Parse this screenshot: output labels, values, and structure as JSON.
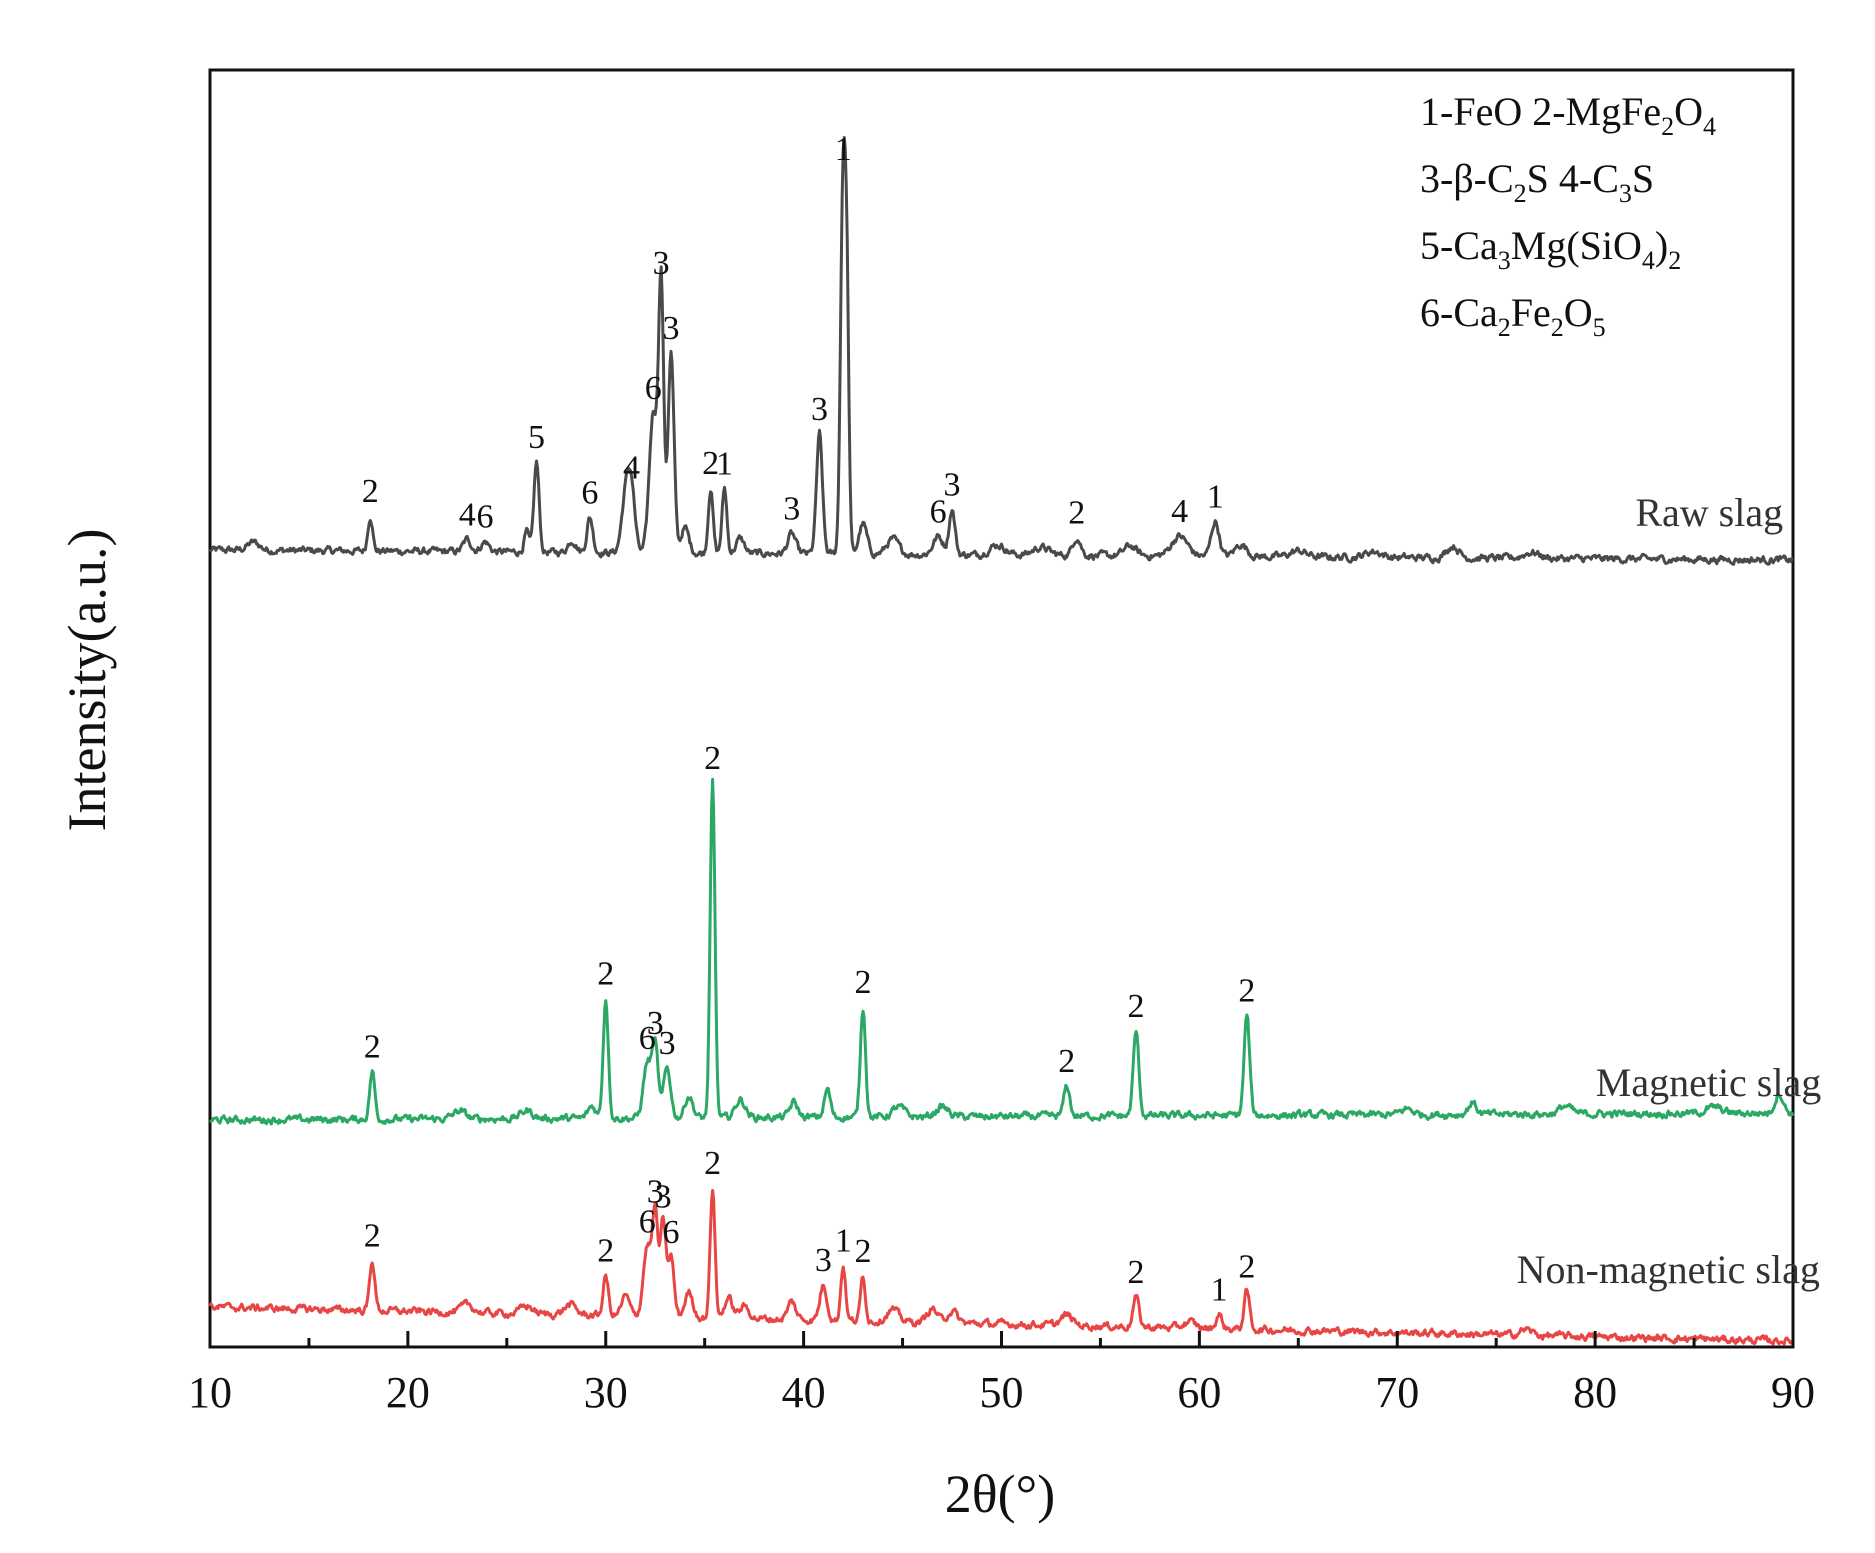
{
  "chart_data": {
    "type": "line",
    "xlabel": "2θ(°)",
    "ylabel": "Intensity(a.u.)",
    "xlim": [
      10,
      90
    ],
    "xticks": [
      10,
      20,
      30,
      40,
      50,
      60,
      70,
      80,
      90
    ],
    "y_units": "arbitrary, stacked",
    "grid": false,
    "legend_placement": "top-right",
    "legend": [
      {
        "id": "l1",
        "parts": [
          {
            "t": "1-FeO  2-MgFe"
          },
          {
            "t": "2",
            "sub": true
          },
          {
            "t": "O"
          },
          {
            "t": "4",
            "sub": true
          }
        ]
      },
      {
        "id": "l2",
        "parts": [
          {
            "t": "3-β-C"
          },
          {
            "t": "2",
            "sub": true
          },
          {
            "t": "S 4-C"
          },
          {
            "t": "3",
            "sub": true
          },
          {
            "t": "S"
          }
        ]
      },
      {
        "id": "l3",
        "parts": [
          {
            "t": "5-Ca"
          },
          {
            "t": "3",
            "sub": true
          },
          {
            "t": "Mg(SiO"
          },
          {
            "t": "4",
            "sub": true
          },
          {
            "t": ")"
          },
          {
            "t": "2",
            "sub": true
          }
        ]
      },
      {
        "id": "l4",
        "parts": [
          {
            "t": "6-Ca"
          },
          {
            "t": "2",
            "sub": true
          },
          {
            "t": "Fe"
          },
          {
            "t": "2",
            "sub": true
          },
          {
            "t": "O"
          },
          {
            "t": "5",
            "sub": true
          }
        ]
      }
    ],
    "series": [
      {
        "name": "Raw slag",
        "color": "#4a4a4a",
        "baseline": 60,
        "baseline_end": 50,
        "label_x": 79,
        "peaks": [
          {
            "x": 12.2,
            "h": 8,
            "w": 0.3
          },
          {
            "x": 18.1,
            "h": 35,
            "w": 0.12,
            "label": "2"
          },
          {
            "x": 23.0,
            "h": 12,
            "w": 0.2,
            "label": "4"
          },
          {
            "x": 23.9,
            "h": 10,
            "w": 0.2,
            "label": "6"
          },
          {
            "x": 26.0,
            "h": 20,
            "w": 0.12
          },
          {
            "x": 26.5,
            "h": 90,
            "w": 0.13,
            "label": "5"
          },
          {
            "x": 28.3,
            "h": 12,
            "w": 0.2
          },
          {
            "x": 29.2,
            "h": 35,
            "w": 0.15,
            "label": "6"
          },
          {
            "x": 31.0,
            "h": 55,
            "w": 0.2
          },
          {
            "x": 31.3,
            "h": 60,
            "w": 0.18,
            "label": "4"
          },
          {
            "x": 32.4,
            "h": 140,
            "w": 0.2,
            "label": "6"
          },
          {
            "x": 32.8,
            "h": 265,
            "w": 0.13,
            "label": "3"
          },
          {
            "x": 33.3,
            "h": 200,
            "w": 0.15,
            "label": "3"
          },
          {
            "x": 34.0,
            "h": 25,
            "w": 0.2
          },
          {
            "x": 35.3,
            "h": 65,
            "w": 0.12,
            "label": "2"
          },
          {
            "x": 36.0,
            "h": 65,
            "w": 0.12,
            "label": "1"
          },
          {
            "x": 36.8,
            "h": 15,
            "w": 0.2
          },
          {
            "x": 39.4,
            "h": 20,
            "w": 0.2,
            "label": "3"
          },
          {
            "x": 40.8,
            "h": 120,
            "w": 0.15,
            "label": "3"
          },
          {
            "x": 42.0,
            "h": 380,
            "w": 0.13,
            "label": "1"
          },
          {
            "x": 42.2,
            "h": 200,
            "w": 0.1
          },
          {
            "x": 43.0,
            "h": 30,
            "w": 0.2
          },
          {
            "x": 44.5,
            "h": 15,
            "w": 0.3
          },
          {
            "x": 46.8,
            "h": 18,
            "w": 0.25,
            "label": "6"
          },
          {
            "x": 47.5,
            "h": 45,
            "w": 0.15,
            "label": "3"
          },
          {
            "x": 49.8,
            "h": 10,
            "w": 0.4
          },
          {
            "x": 52.0,
            "h": 8,
            "w": 0.4
          },
          {
            "x": 53.8,
            "h": 18,
            "w": 0.2,
            "label": "2"
          },
          {
            "x": 56.5,
            "h": 10,
            "w": 0.3
          },
          {
            "x": 59.0,
            "h": 20,
            "w": 0.4,
            "label": "4"
          },
          {
            "x": 60.8,
            "h": 35,
            "w": 0.2,
            "label": "1"
          },
          {
            "x": 62.1,
            "h": 12,
            "w": 0.3
          },
          {
            "x": 65.0,
            "h": 6,
            "w": 0.4
          },
          {
            "x": 68.8,
            "h": 6,
            "w": 0.4
          },
          {
            "x": 72.8,
            "h": 12,
            "w": 0.3
          },
          {
            "x": 76.8,
            "h": 6,
            "w": 0.4
          }
        ]
      },
      {
        "name": "Magnetic slag",
        "color": "#2aa864",
        "baseline": 8,
        "baseline_end": 15,
        "label_x": 77,
        "peaks": [
          {
            "x": 18.2,
            "h": 48,
            "w": 0.13,
            "label": "2"
          },
          {
            "x": 22.6,
            "h": 8,
            "w": 0.3
          },
          {
            "x": 26.0,
            "h": 8,
            "w": 0.3
          },
          {
            "x": 29.3,
            "h": 12,
            "w": 0.2
          },
          {
            "x": 30.0,
            "h": 120,
            "w": 0.13,
            "label": "2"
          },
          {
            "x": 32.1,
            "h": 55,
            "w": 0.2,
            "label": "6"
          },
          {
            "x": 32.5,
            "h": 70,
            "w": 0.15,
            "label": "3"
          },
          {
            "x": 33.1,
            "h": 50,
            "w": 0.18,
            "label": "3"
          },
          {
            "x": 34.2,
            "h": 22,
            "w": 0.2
          },
          {
            "x": 35.4,
            "h": 335,
            "w": 0.12,
            "label": "2"
          },
          {
            "x": 36.8,
            "h": 18,
            "w": 0.25
          },
          {
            "x": 39.5,
            "h": 15,
            "w": 0.2
          },
          {
            "x": 41.2,
            "h": 28,
            "w": 0.15
          },
          {
            "x": 43.0,
            "h": 110,
            "w": 0.13,
            "label": "2"
          },
          {
            "x": 44.8,
            "h": 10,
            "w": 0.3
          },
          {
            "x": 47.0,
            "h": 10,
            "w": 0.3
          },
          {
            "x": 53.3,
            "h": 30,
            "w": 0.15,
            "label": "2"
          },
          {
            "x": 56.8,
            "h": 85,
            "w": 0.14,
            "label": "2"
          },
          {
            "x": 62.4,
            "h": 100,
            "w": 0.14,
            "label": "2"
          },
          {
            "x": 70.5,
            "h": 6,
            "w": 0.3
          },
          {
            "x": 73.8,
            "h": 12,
            "w": 0.2
          },
          {
            "x": 78.5,
            "h": 8,
            "w": 0.3
          },
          {
            "x": 86.0,
            "h": 6,
            "w": 0.4
          },
          {
            "x": 89.3,
            "h": 20,
            "w": 0.2
          }
        ]
      },
      {
        "name": "Non-magnetic slag",
        "color": "#e84545",
        "baseline": 38,
        "baseline_end": 4,
        "label_x": 73,
        "peaks": [
          {
            "x": 18.2,
            "h": 50,
            "w": 0.13,
            "label": "2"
          },
          {
            "x": 23.0,
            "h": 8,
            "w": 0.3
          },
          {
            "x": 26.0,
            "h": 8,
            "w": 0.3
          },
          {
            "x": 28.2,
            "h": 10,
            "w": 0.3
          },
          {
            "x": 30.0,
            "h": 40,
            "w": 0.13,
            "label": "2"
          },
          {
            "x": 31.0,
            "h": 20,
            "w": 0.2
          },
          {
            "x": 32.1,
            "h": 70,
            "w": 0.2,
            "label": "6"
          },
          {
            "x": 32.5,
            "h": 100,
            "w": 0.14,
            "label": "3"
          },
          {
            "x": 32.9,
            "h": 95,
            "w": 0.14,
            "label": "3"
          },
          {
            "x": 33.3,
            "h": 60,
            "w": 0.15,
            "label": "6"
          },
          {
            "x": 34.2,
            "h": 25,
            "w": 0.2
          },
          {
            "x": 35.4,
            "h": 130,
            "w": 0.12,
            "label": "2"
          },
          {
            "x": 36.2,
            "h": 20,
            "w": 0.2
          },
          {
            "x": 37.0,
            "h": 12,
            "w": 0.25
          },
          {
            "x": 39.4,
            "h": 18,
            "w": 0.2
          },
          {
            "x": 41.0,
            "h": 35,
            "w": 0.18,
            "label": "3"
          },
          {
            "x": 42.0,
            "h": 55,
            "w": 0.12,
            "label": "1"
          },
          {
            "x": 43.0,
            "h": 45,
            "w": 0.12,
            "label": "2"
          },
          {
            "x": 44.5,
            "h": 12,
            "w": 0.3
          },
          {
            "x": 46.5,
            "h": 14,
            "w": 0.25
          },
          {
            "x": 47.5,
            "h": 12,
            "w": 0.25
          },
          {
            "x": 53.3,
            "h": 10,
            "w": 0.3
          },
          {
            "x": 56.8,
            "h": 30,
            "w": 0.15,
            "label": "2"
          },
          {
            "x": 59.5,
            "h": 6,
            "w": 0.3
          },
          {
            "x": 61.0,
            "h": 14,
            "w": 0.15,
            "label": "1"
          },
          {
            "x": 62.4,
            "h": 38,
            "w": 0.14,
            "label": "2"
          },
          {
            "x": 76.5,
            "h": 6,
            "w": 0.3
          }
        ]
      }
    ]
  }
}
